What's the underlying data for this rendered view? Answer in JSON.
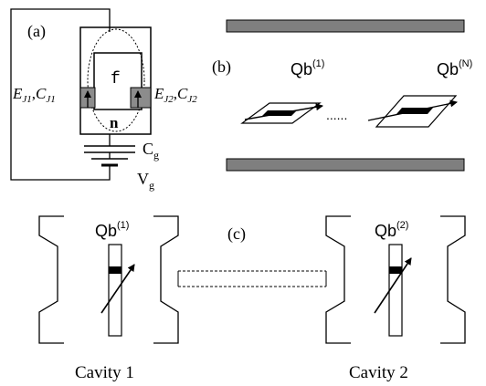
{
  "panel_a": {
    "label": "(a)",
    "island_label": "f",
    "node_label": "n",
    "junction_left": {
      "E": "E",
      "E_sub": "J1",
      "sep": ",",
      "C": "C",
      "C_sub": "J1"
    },
    "junction_right": {
      "E": "E",
      "E_sub": "J2",
      "sep": ",",
      "C": "C",
      "C_sub": "J2"
    },
    "gate_cap": {
      "base": "C",
      "sub": "g"
    },
    "gate_volt": {
      "base": "V",
      "sub": "g"
    }
  },
  "panel_b": {
    "label": "(b)",
    "qubit_first": {
      "base": "Qb",
      "sup": "(1)"
    },
    "qubit_last": {
      "base": "Qb",
      "sup": "(N)"
    },
    "ellipsis": "......"
  },
  "panel_c": {
    "label": "(c)",
    "qubit_1": {
      "base": "Qb",
      "sup": "(1)"
    },
    "qubit_2": {
      "base": "Qb",
      "sup": "(2)"
    },
    "cavity_1": "Cavity 1",
    "cavity_2": "Cavity 2"
  },
  "colors": {
    "line": "#000000",
    "plate_fill": "#7f7f7f",
    "junction_fill": "#8c8c8c",
    "background": "#ffffff"
  }
}
